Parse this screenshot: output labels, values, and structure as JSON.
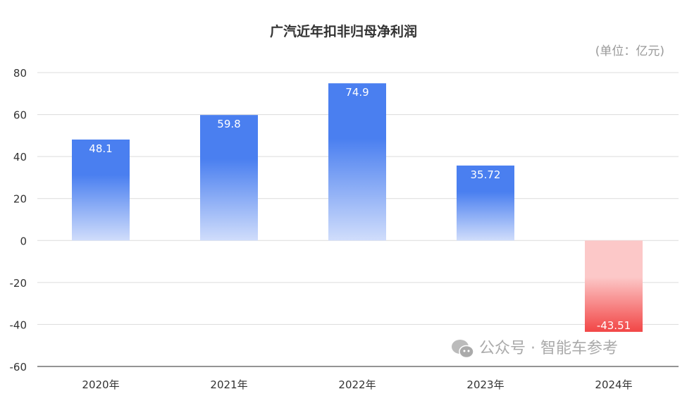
{
  "chart_data": {
    "type": "bar",
    "title": "广汽近年扣非归母净利润",
    "unit_label": "(单位：亿元)",
    "categories": [
      "2020年",
      "2021年",
      "2022年",
      "2023年",
      "2024年"
    ],
    "values": [
      48.1,
      59.8,
      74.9,
      35.72,
      -43.51
    ],
    "data_labels": [
      "48.1",
      "59.8",
      "74.9",
      "35.72",
      "-43.51"
    ],
    "ylim": [
      -60,
      80
    ],
    "yticks": [
      80,
      60,
      40,
      20,
      0,
      -20,
      -40,
      -60
    ],
    "grid": true,
    "colors": {
      "positive_top": "#4a7ff0",
      "positive_bottom": "#d0ddfb",
      "negative_top": "#fcc8c8",
      "negative_bottom": "#f24646"
    }
  },
  "watermark": {
    "icon": "wechat-icon",
    "text": "公众号 · 智能车参考"
  }
}
